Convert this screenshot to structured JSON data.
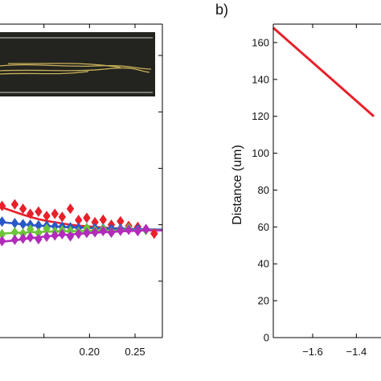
{
  "colors": {
    "red": "#e8202a",
    "blue": "#2a57c8",
    "green": "#6cc43a",
    "purple": "#b22bbb",
    "inset_bg": "#23231f",
    "inset_fiber": "#c8b25a"
  },
  "chart_data": [
    {
      "panel": "a",
      "type": "scatter",
      "title": "",
      "xlabel": "",
      "ylabel": "",
      "xlim": [
        0.1,
        0.28
      ],
      "ylim": [
        0,
        1
      ],
      "x_ticks": [
        0.2,
        0.25
      ],
      "x_tick_labels": [
        "0.20",
        "0.25"
      ],
      "grid": false,
      "series": [
        {
          "color": "red",
          "marker": "diamond",
          "x": [
            0.104,
            0.118,
            0.127,
            0.135,
            0.144,
            0.153,
            0.162,
            0.17,
            0.179,
            0.188,
            0.197,
            0.206,
            0.215,
            0.224,
            0.234,
            0.243,
            0.253,
            0.262,
            0.271
          ],
          "y": [
            0.42,
            0.425,
            0.411,
            0.395,
            0.402,
            0.388,
            0.395,
            0.385,
            0.411,
            0.375,
            0.382,
            0.368,
            0.376,
            0.36,
            0.371,
            0.356,
            0.353,
            0.346,
            0.332
          ],
          "fit_y": [
            0.415,
            0.401,
            0.392,
            0.385,
            0.378,
            0.372,
            0.368,
            0.364,
            0.36,
            0.357,
            0.355,
            0.353,
            0.351,
            0.349,
            0.348,
            0.347,
            0.346,
            0.345,
            0.344
          ]
        },
        {
          "color": "blue",
          "marker": "diamond",
          "x": [
            0.104,
            0.118,
            0.127,
            0.135,
            0.144,
            0.153,
            0.162,
            0.17,
            0.179,
            0.188,
            0.197,
            0.206,
            0.215,
            0.224,
            0.234,
            0.243,
            0.253,
            0.262
          ],
          "y": [
            0.37,
            0.365,
            0.362,
            0.36,
            0.358,
            0.357,
            0.355,
            0.354,
            0.352,
            0.35,
            0.349,
            0.349,
            0.348,
            0.347,
            0.347,
            0.346,
            0.346,
            0.345
          ],
          "fit_y": [
            0.368,
            0.364,
            0.361,
            0.359,
            0.357,
            0.356,
            0.354,
            0.353,
            0.352,
            0.351,
            0.35,
            0.349,
            0.348,
            0.347,
            0.347,
            0.346,
            0.346,
            0.345
          ]
        },
        {
          "color": "green",
          "marker": "diamond",
          "x": [
            0.104,
            0.118,
            0.127,
            0.135,
            0.144,
            0.153,
            0.162,
            0.17,
            0.179,
            0.188,
            0.197,
            0.206,
            0.215,
            0.224,
            0.234,
            0.243,
            0.253,
            0.262
          ],
          "y": [
            0.33,
            0.336,
            0.332,
            0.345,
            0.334,
            0.347,
            0.338,
            0.342,
            0.34,
            0.337,
            0.349,
            0.341,
            0.346,
            0.337,
            0.342,
            0.349,
            0.34,
            0.343
          ],
          "fit_y": [
            0.332,
            0.334,
            0.335,
            0.336,
            0.337,
            0.338,
            0.338,
            0.339,
            0.339,
            0.34,
            0.34,
            0.341,
            0.341,
            0.341,
            0.342,
            0.342,
            0.342,
            0.343
          ]
        },
        {
          "color": "purple",
          "marker": "diamond",
          "x": [
            0.104,
            0.118,
            0.127,
            0.135,
            0.144,
            0.153,
            0.162,
            0.17,
            0.179,
            0.188,
            0.197,
            0.206,
            0.215,
            0.224,
            0.234,
            0.243,
            0.253,
            0.262
          ],
          "y": [
            0.308,
            0.312,
            0.316,
            0.32,
            0.314,
            0.322,
            0.326,
            0.33,
            0.323,
            0.331,
            0.334,
            0.336,
            0.34,
            0.335,
            0.341,
            0.344,
            0.34,
            0.346
          ],
          "fit_y": [
            0.306,
            0.31,
            0.314,
            0.317,
            0.32,
            0.323,
            0.325,
            0.327,
            0.329,
            0.331,
            0.333,
            0.335,
            0.336,
            0.337,
            0.339,
            0.34,
            0.341,
            0.342
          ]
        }
      ],
      "inset": {
        "description_icon": "fiber-micrograph",
        "fiber_count": 4
      }
    },
    {
      "panel": "b",
      "type": "line",
      "title": "",
      "panel_label": "b)",
      "xlabel": "",
      "ylabel": "Distance (um)",
      "xlim": [
        -1.78,
        -1.28
      ],
      "ylim": [
        0,
        170
      ],
      "x_ticks": [
        -1.6,
        -1.4
      ],
      "x_tick_labels": [
        "−1.6",
        "−1.4"
      ],
      "y_ticks": [
        0,
        20,
        40,
        60,
        80,
        100,
        120,
        140,
        160
      ],
      "y_tick_labels": [
        "0",
        "20",
        "40",
        "60",
        "80",
        "100",
        "120",
        "140",
        "160"
      ],
      "grid": false,
      "series": [
        {
          "color": "red",
          "x": [
            -1.78,
            -1.32
          ],
          "y": [
            168,
            120
          ]
        }
      ]
    }
  ]
}
